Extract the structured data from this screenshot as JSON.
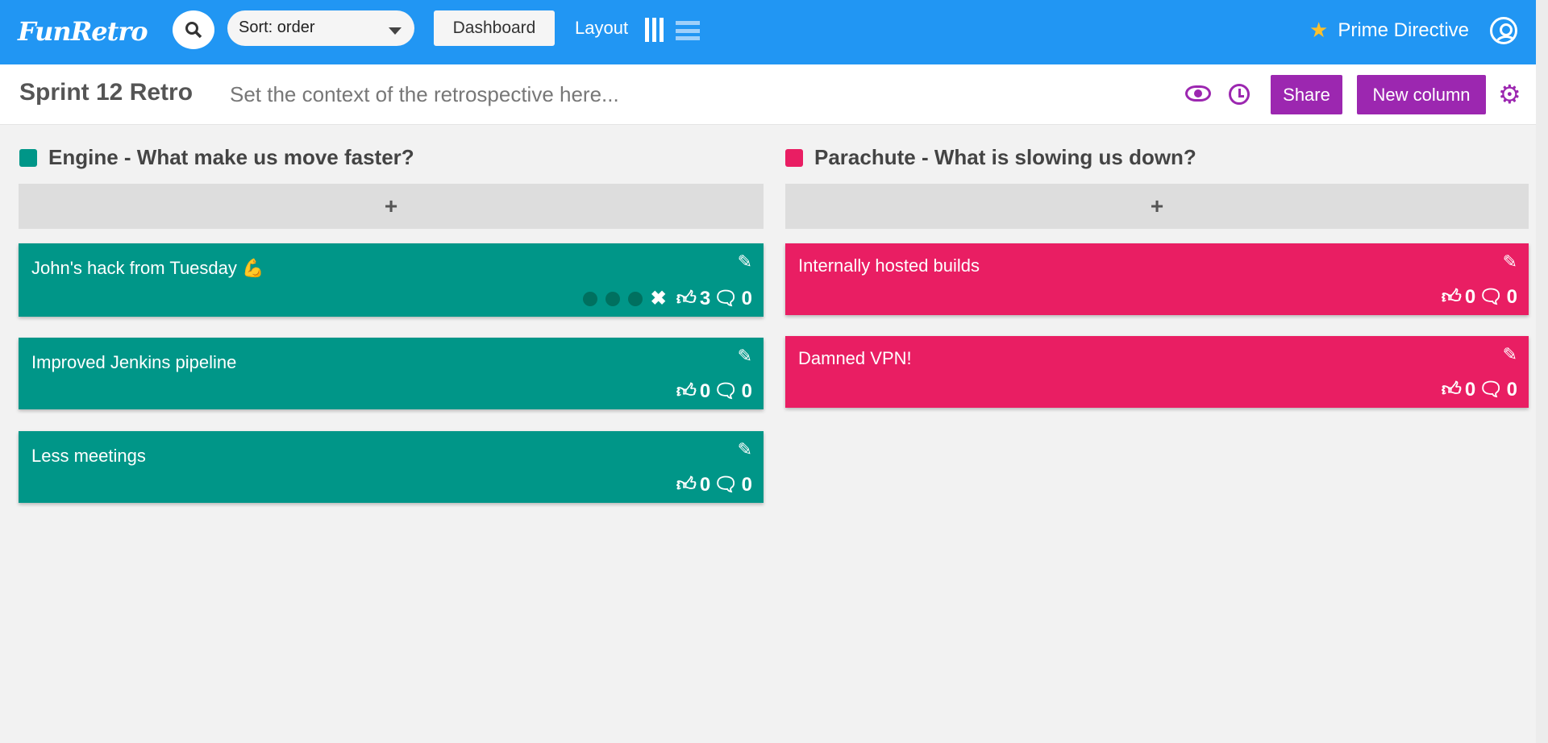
{
  "topbar": {
    "logo": "FunRetro",
    "sort": "Sort: order",
    "dashboard": "Dashboard",
    "layout": "Layout",
    "prime": "Prime Directive"
  },
  "board": {
    "title": "Sprint 12 Retro",
    "context_placeholder": "Set the context of the retrospective here...",
    "share": "Share",
    "new_column": "New column"
  },
  "colors": {
    "topbar": "#2196f3",
    "accent": "#9c27b0",
    "engine": "#009688",
    "parachute": "#e91e63"
  },
  "columns": [
    {
      "title": "Engine - What make us move faster?",
      "add": "+",
      "cards": [
        {
          "text": "John's hack from Tuesday 💪",
          "votes": "3",
          "comments": "0"
        },
        {
          "text": "Improved Jenkins pipeline",
          "votes": "0",
          "comments": "0"
        },
        {
          "text": "Less meetings",
          "votes": "0",
          "comments": "0"
        }
      ]
    },
    {
      "title": "Parachute - What is slowing us down?",
      "add": "+",
      "cards": [
        {
          "text": "Internally hosted builds",
          "votes": "0",
          "comments": "0"
        },
        {
          "text": "Damned VPN!",
          "votes": "0",
          "comments": "0"
        }
      ]
    }
  ]
}
